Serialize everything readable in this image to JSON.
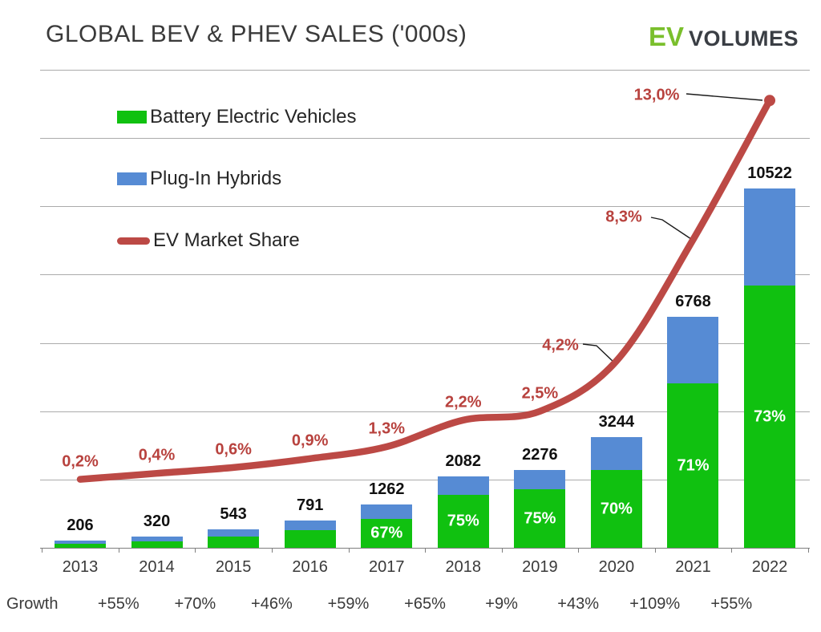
{
  "header": {
    "title": "GLOBAL BEV & PHEV SALES ('000s)",
    "logo": {
      "ev": "EV",
      "volumes": "VOLUMES"
    }
  },
  "legend": [
    {
      "id": "bev",
      "label": "Battery Electric Vehicles"
    },
    {
      "id": "phev",
      "label": "Plug-In Hybrids"
    },
    {
      "id": "share",
      "label": "EV Market Share"
    }
  ],
  "colors": {
    "bev_green": "#10c110",
    "phev_blue": "#568bd4",
    "line_red": "#bc4945",
    "share_text_red": "#b8423e",
    "grid_gray": "#ababab",
    "axis_gray": "#7f7f7f",
    "text_dark": "#3a3a3a",
    "logo_green": "#7abf2c",
    "logo_dark": "#3a3e44"
  },
  "chart_data": {
    "type": "bar",
    "subtype": "stacked-column-with-secondary-line",
    "title": "GLOBAL BEV & PHEV SALES ('000s)",
    "categories": [
      "2013",
      "2014",
      "2015",
      "2016",
      "2017",
      "2018",
      "2019",
      "2020",
      "2021",
      "2022"
    ],
    "series": [
      {
        "name": "Battery Electric Vehicles",
        "type": "bar-stack-bottom",
        "unit": "thousand vehicles"
      },
      {
        "name": "Plug-In Hybrids",
        "type": "bar-stack-top",
        "unit": "thousand vehicles"
      },
      {
        "name": "EV Market Share",
        "type": "line",
        "unit": "%",
        "values": [
          0.2,
          0.4,
          0.6,
          0.9,
          1.3,
          2.2,
          2.5,
          4.2,
          8.3,
          13.0
        ]
      }
    ],
    "totals": [
      206,
      320,
      543,
      791,
      1262,
      2082,
      2276,
      3244,
      6768,
      10522
    ],
    "total_labels": [
      "206",
      "320",
      "543",
      "791",
      "1262",
      "2082",
      "2276",
      "3244",
      "6768",
      "10522"
    ],
    "bev_share_pct": [
      null,
      null,
      null,
      null,
      67,
      75,
      75,
      70,
      71,
      73
    ],
    "bev_share_labels": [
      "",
      "",
      "",
      "",
      "67%",
      "75%",
      "75%",
      "70%",
      "71%",
      "73%"
    ],
    "market_share_labels": [
      "0,2%",
      "0,4%",
      "0,6%",
      "0,9%",
      "1,3%",
      "2,2%",
      "2,5%",
      "4,2%",
      "8,3%",
      "13,0%"
    ],
    "growth": {
      "label": "Growth",
      "values": [
        "+55%",
        "+70%",
        "+46%",
        "+59%",
        "+65%",
        "+9%",
        "+43%",
        "+109%",
        "+55%"
      ]
    },
    "primary_axis": {
      "min": 0,
      "max": 14000,
      "gridline_step": 2000,
      "tick_labels_visible": false
    },
    "secondary_axis": {
      "unit": "%",
      "tick_labels_visible": false
    },
    "grid": true,
    "legend_position": "inside-top-left",
    "xlabel": "",
    "ylabel": ""
  }
}
